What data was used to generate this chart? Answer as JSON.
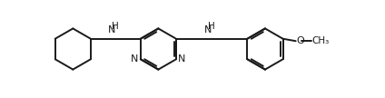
{
  "background_color": "#ffffff",
  "line_color": "#1a1a1a",
  "line_width": 1.4,
  "font_size": 7.5,
  "fig_width": 4.24,
  "fig_height": 1.08,
  "dpi": 100,
  "xlim": [
    0,
    11.5
  ],
  "ylim": [
    -0.2,
    3.2
  ]
}
